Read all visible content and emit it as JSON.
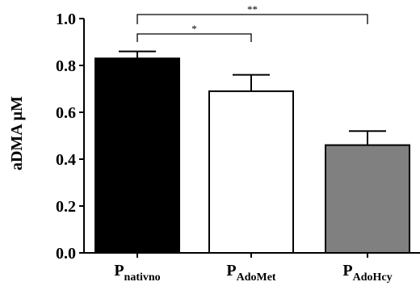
{
  "chart_data": {
    "type": "bar",
    "title": "",
    "xlabel": "",
    "ylabel": "aDMA µM",
    "ylim": [
      0,
      1.0
    ],
    "yticks": [
      "0.0",
      "0.2",
      "0.4",
      "0.6",
      "0.8",
      "1.0"
    ],
    "grid": false,
    "legend": "none",
    "categories": [
      {
        "main": "P",
        "sub": "nativno"
      },
      {
        "main": "P",
        "sub": "AdoMet"
      },
      {
        "main": "P",
        "sub": "AdoHcy"
      }
    ],
    "values": [
      0.83,
      0.69,
      0.46
    ],
    "errors": [
      0.03,
      0.07,
      0.06
    ],
    "bar_colors": [
      "#000000",
      "#ffffff",
      "#808080"
    ],
    "significance": [
      {
        "from": 0,
        "to": 1,
        "label": "*"
      },
      {
        "from": 0,
        "to": 2,
        "label": "**"
      }
    ]
  }
}
